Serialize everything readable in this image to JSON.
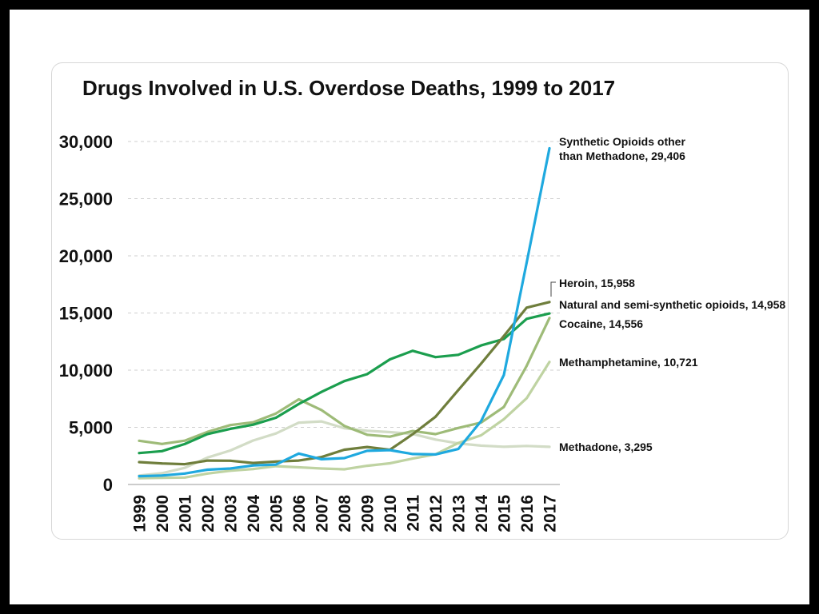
{
  "chart_data": {
    "type": "line",
    "title": "Drugs Involved in U.S. Overdose Deaths, 1999 to 2017",
    "x": [
      1999,
      2000,
      2001,
      2002,
      2003,
      2004,
      2005,
      2006,
      2007,
      2008,
      2009,
      2010,
      2011,
      2012,
      2013,
      2014,
      2015,
      2016,
      2017
    ],
    "ylim": [
      0,
      30000
    ],
    "yticks": [
      0,
      5000,
      10000,
      15000,
      20000,
      25000,
      30000
    ],
    "ytick_labels": [
      "0",
      "5,000",
      "10,000",
      "15,000",
      "20,000",
      "25,000",
      "30,000"
    ],
    "grid": true,
    "legend": "right",
    "series": [
      {
        "name": "Synthetic Opioids other than Methadone",
        "color": "#1fa9df",
        "values": [
          730,
          782,
          957,
          1295,
          1400,
          1664,
          1742,
          2707,
          2213,
          2306,
          2946,
          3007,
          2666,
          2628,
          3105,
          5544,
          9580,
          19413,
          29406
        ]
      },
      {
        "name": "Heroin",
        "color": "#6f7e3c",
        "values": [
          1960,
          1842,
          1779,
          2089,
          2080,
          1878,
          2009,
          2088,
          2399,
          3041,
          3278,
          3036,
          4397,
          5925,
          8257,
          10574,
          12989,
          15469,
          15958
        ]
      },
      {
        "name": "Natural and semi-synthetic opioids",
        "color": "#1b9e4e",
        "values": [
          2749,
          2917,
          3539,
          4416,
          4867,
          5231,
          5836,
          7038,
          8095,
          9039,
          9650,
          10943,
          11693,
          11140,
          11346,
          12159,
          12727,
          14487,
          14958
        ]
      },
      {
        "name": "Cocaine",
        "color": "#9ebb78",
        "values": [
          3822,
          3544,
          3833,
          4599,
          5199,
          5443,
          6208,
          7448,
          6512,
          5129,
          4350,
          4183,
          4681,
          4404,
          4944,
          5415,
          6784,
          10375,
          14556
        ]
      },
      {
        "name": "Methamphetamine",
        "color": "#bfd3a2",
        "values": [
          547,
          578,
          606,
          960,
          1200,
          1347,
          1600,
          1500,
          1400,
          1327,
          1638,
          1854,
          2266,
          2635,
          3627,
          4298,
          5716,
          7542,
          10721
        ]
      },
      {
        "name": "Methadone",
        "color": "#d2dcc6",
        "values": [
          784,
          986,
          1456,
          2358,
          2972,
          3845,
          4460,
          5406,
          5518,
          4924,
          4696,
          4577,
          4418,
          3932,
          3591,
          3400,
          3301,
          3373,
          3295
        ]
      }
    ]
  }
}
